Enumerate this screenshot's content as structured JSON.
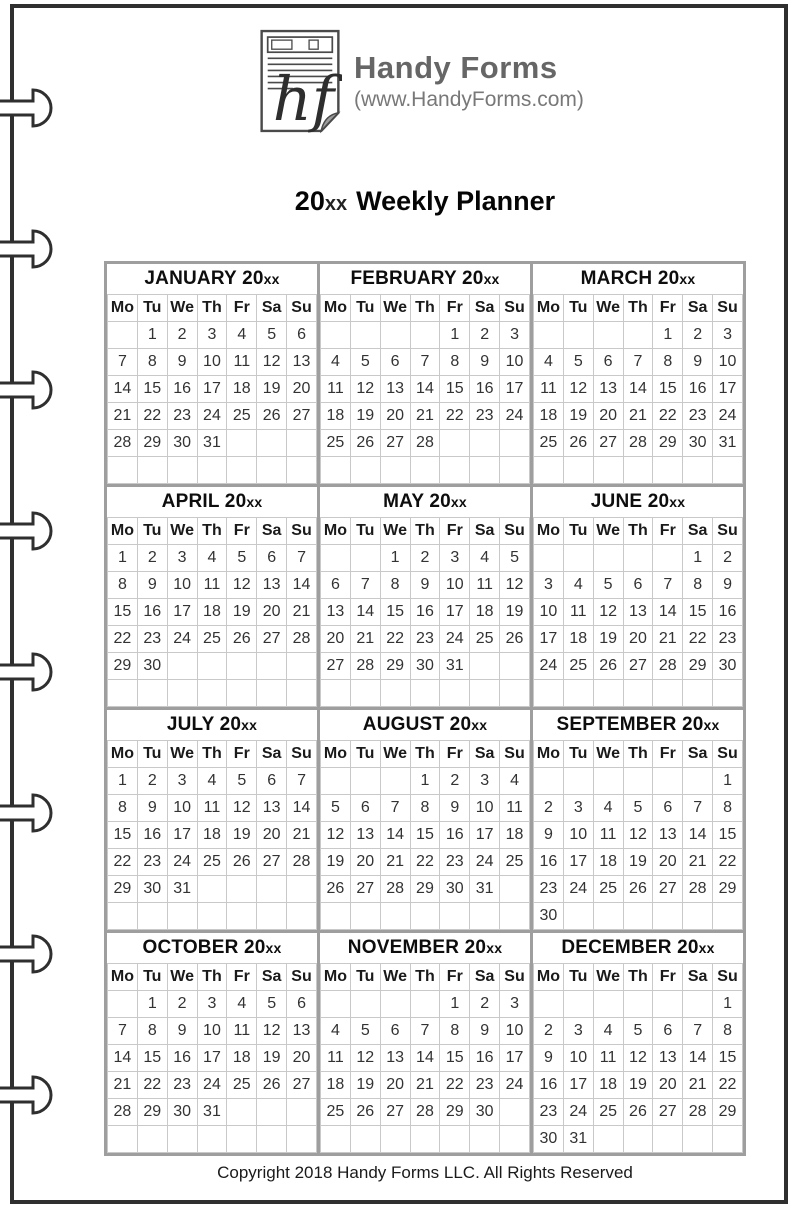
{
  "page": {
    "logo": {
      "icon": "handy-forms-document-icon",
      "monogram": "hf",
      "brand": "Handy Forms",
      "website": "(www.HandyForms.com)"
    },
    "title": {
      "year_prefix": "20",
      "year_suffix": "xx",
      "rest": "Weekly Planner"
    },
    "copyright": "Copyright 2018 Handy Forms LLC. All Rights Reserved"
  },
  "calendar": {
    "year_prefix": "20",
    "year_suffix": "xx",
    "weekdays": [
      "Mo",
      "Tu",
      "We",
      "Th",
      "Fr",
      "Sa",
      "Su"
    ],
    "months": [
      {
        "name": "JANUARY",
        "weeks": [
          [
            "",
            "1",
            "2",
            "3",
            "4",
            "5",
            "6"
          ],
          [
            "7",
            "8",
            "9",
            "10",
            "11",
            "12",
            "13"
          ],
          [
            "14",
            "15",
            "16",
            "17",
            "18",
            "19",
            "20"
          ],
          [
            "21",
            "22",
            "23",
            "24",
            "25",
            "26",
            "27"
          ],
          [
            "28",
            "29",
            "30",
            "31",
            "",
            "",
            ""
          ],
          [
            "",
            "",
            "",
            "",
            "",
            "",
            ""
          ]
        ]
      },
      {
        "name": "FEBRUARY",
        "weeks": [
          [
            "",
            "",
            "",
            "",
            "1",
            "2",
            "3"
          ],
          [
            "4",
            "5",
            "6",
            "7",
            "8",
            "9",
            "10"
          ],
          [
            "11",
            "12",
            "13",
            "14",
            "15",
            "16",
            "17"
          ],
          [
            "18",
            "19",
            "20",
            "21",
            "22",
            "23",
            "24"
          ],
          [
            "25",
            "26",
            "27",
            "28",
            "",
            "",
            ""
          ],
          [
            "",
            "",
            "",
            "",
            "",
            "",
            ""
          ]
        ]
      },
      {
        "name": "MARCH",
        "weeks": [
          [
            "",
            "",
            "",
            "",
            "1",
            "2",
            "3"
          ],
          [
            "4",
            "5",
            "6",
            "7",
            "8",
            "9",
            "10"
          ],
          [
            "11",
            "12",
            "13",
            "14",
            "15",
            "16",
            "17"
          ],
          [
            "18",
            "19",
            "20",
            "21",
            "22",
            "23",
            "24"
          ],
          [
            "25",
            "26",
            "27",
            "28",
            "29",
            "30",
            "31"
          ],
          [
            "",
            "",
            "",
            "",
            "",
            "",
            ""
          ]
        ]
      },
      {
        "name": "APRIL",
        "weeks": [
          [
            "1",
            "2",
            "3",
            "4",
            "5",
            "6",
            "7"
          ],
          [
            "8",
            "9",
            "10",
            "11",
            "12",
            "13",
            "14"
          ],
          [
            "15",
            "16",
            "17",
            "18",
            "19",
            "20",
            "21"
          ],
          [
            "22",
            "23",
            "24",
            "25",
            "26",
            "27",
            "28"
          ],
          [
            "29",
            "30",
            "",
            "",
            "",
            "",
            ""
          ],
          [
            "",
            "",
            "",
            "",
            "",
            "",
            ""
          ]
        ]
      },
      {
        "name": "MAY",
        "weeks": [
          [
            "",
            "",
            "1",
            "2",
            "3",
            "4",
            "5"
          ],
          [
            "6",
            "7",
            "8",
            "9",
            "10",
            "11",
            "12"
          ],
          [
            "13",
            "14",
            "15",
            "16",
            "17",
            "18",
            "19"
          ],
          [
            "20",
            "21",
            "22",
            "23",
            "24",
            "25",
            "26"
          ],
          [
            "27",
            "28",
            "29",
            "30",
            "31",
            "",
            ""
          ],
          [
            "",
            "",
            "",
            "",
            "",
            "",
            ""
          ]
        ]
      },
      {
        "name": "JUNE",
        "weeks": [
          [
            "",
            "",
            "",
            "",
            "",
            "1",
            "2"
          ],
          [
            "3",
            "4",
            "5",
            "6",
            "7",
            "8",
            "9"
          ],
          [
            "10",
            "11",
            "12",
            "13",
            "14",
            "15",
            "16"
          ],
          [
            "17",
            "18",
            "19",
            "20",
            "21",
            "22",
            "23"
          ],
          [
            "24",
            "25",
            "26",
            "27",
            "28",
            "29",
            "30"
          ],
          [
            "",
            "",
            "",
            "",
            "",
            "",
            ""
          ]
        ]
      },
      {
        "name": "JULY",
        "weeks": [
          [
            "1",
            "2",
            "3",
            "4",
            "5",
            "6",
            "7"
          ],
          [
            "8",
            "9",
            "10",
            "11",
            "12",
            "13",
            "14"
          ],
          [
            "15",
            "16",
            "17",
            "18",
            "19",
            "20",
            "21"
          ],
          [
            "22",
            "23",
            "24",
            "25",
            "26",
            "27",
            "28"
          ],
          [
            "29",
            "30",
            "31",
            "",
            "",
            "",
            ""
          ],
          [
            "",
            "",
            "",
            "",
            "",
            "",
            ""
          ]
        ]
      },
      {
        "name": "AUGUST",
        "weeks": [
          [
            "",
            "",
            "",
            "1",
            "2",
            "3",
            "4"
          ],
          [
            "5",
            "6",
            "7",
            "8",
            "9",
            "10",
            "11"
          ],
          [
            "12",
            "13",
            "14",
            "15",
            "16",
            "17",
            "18"
          ],
          [
            "19",
            "20",
            "21",
            "22",
            "23",
            "24",
            "25"
          ],
          [
            "26",
            "27",
            "28",
            "29",
            "30",
            "31",
            ""
          ],
          [
            "",
            "",
            "",
            "",
            "",
            "",
            ""
          ]
        ]
      },
      {
        "name": "SEPTEMBER",
        "weeks": [
          [
            "",
            "",
            "",
            "",
            "",
            "",
            "1"
          ],
          [
            "2",
            "3",
            "4",
            "5",
            "6",
            "7",
            "8"
          ],
          [
            "9",
            "10",
            "11",
            "12",
            "13",
            "14",
            "15"
          ],
          [
            "16",
            "17",
            "18",
            "19",
            "20",
            "21",
            "22"
          ],
          [
            "23",
            "24",
            "25",
            "26",
            "27",
            "28",
            "29"
          ],
          [
            "30",
            "",
            "",
            "",
            "",
            "",
            ""
          ]
        ]
      },
      {
        "name": "OCTOBER",
        "weeks": [
          [
            "",
            "1",
            "2",
            "3",
            "4",
            "5",
            "6"
          ],
          [
            "7",
            "8",
            "9",
            "10",
            "11",
            "12",
            "13"
          ],
          [
            "14",
            "15",
            "16",
            "17",
            "18",
            "19",
            "20"
          ],
          [
            "21",
            "22",
            "23",
            "24",
            "25",
            "26",
            "27"
          ],
          [
            "28",
            "29",
            "30",
            "31",
            "",
            "",
            ""
          ],
          [
            "",
            "",
            "",
            "",
            "",
            "",
            ""
          ]
        ]
      },
      {
        "name": "NOVEMBER",
        "weeks": [
          [
            "",
            "",
            "",
            "",
            "1",
            "2",
            "3"
          ],
          [
            "4",
            "5",
            "6",
            "7",
            "8",
            "9",
            "10"
          ],
          [
            "11",
            "12",
            "13",
            "14",
            "15",
            "16",
            "17"
          ],
          [
            "18",
            "19",
            "20",
            "21",
            "22",
            "23",
            "24"
          ],
          [
            "25",
            "26",
            "27",
            "28",
            "29",
            "30",
            ""
          ],
          [
            "",
            "",
            "",
            "",
            "",
            "",
            ""
          ]
        ]
      },
      {
        "name": "DECEMBER",
        "weeks": [
          [
            "",
            "",
            "",
            "",
            "",
            "",
            "1"
          ],
          [
            "2",
            "3",
            "4",
            "5",
            "6",
            "7",
            "8"
          ],
          [
            "9",
            "10",
            "11",
            "12",
            "13",
            "14",
            "15"
          ],
          [
            "16",
            "17",
            "18",
            "19",
            "20",
            "21",
            "22"
          ],
          [
            "23",
            "24",
            "25",
            "26",
            "27",
            "28",
            "29"
          ],
          [
            "30",
            "31",
            "",
            "",
            "",
            "",
            ""
          ]
        ]
      }
    ]
  },
  "colors": {
    "page_border": "#2f2f2f",
    "month_border": "#9e9e9e",
    "cell_border": "#c9c9c9",
    "brand_text": "#666666",
    "date_text": "#333333"
  }
}
